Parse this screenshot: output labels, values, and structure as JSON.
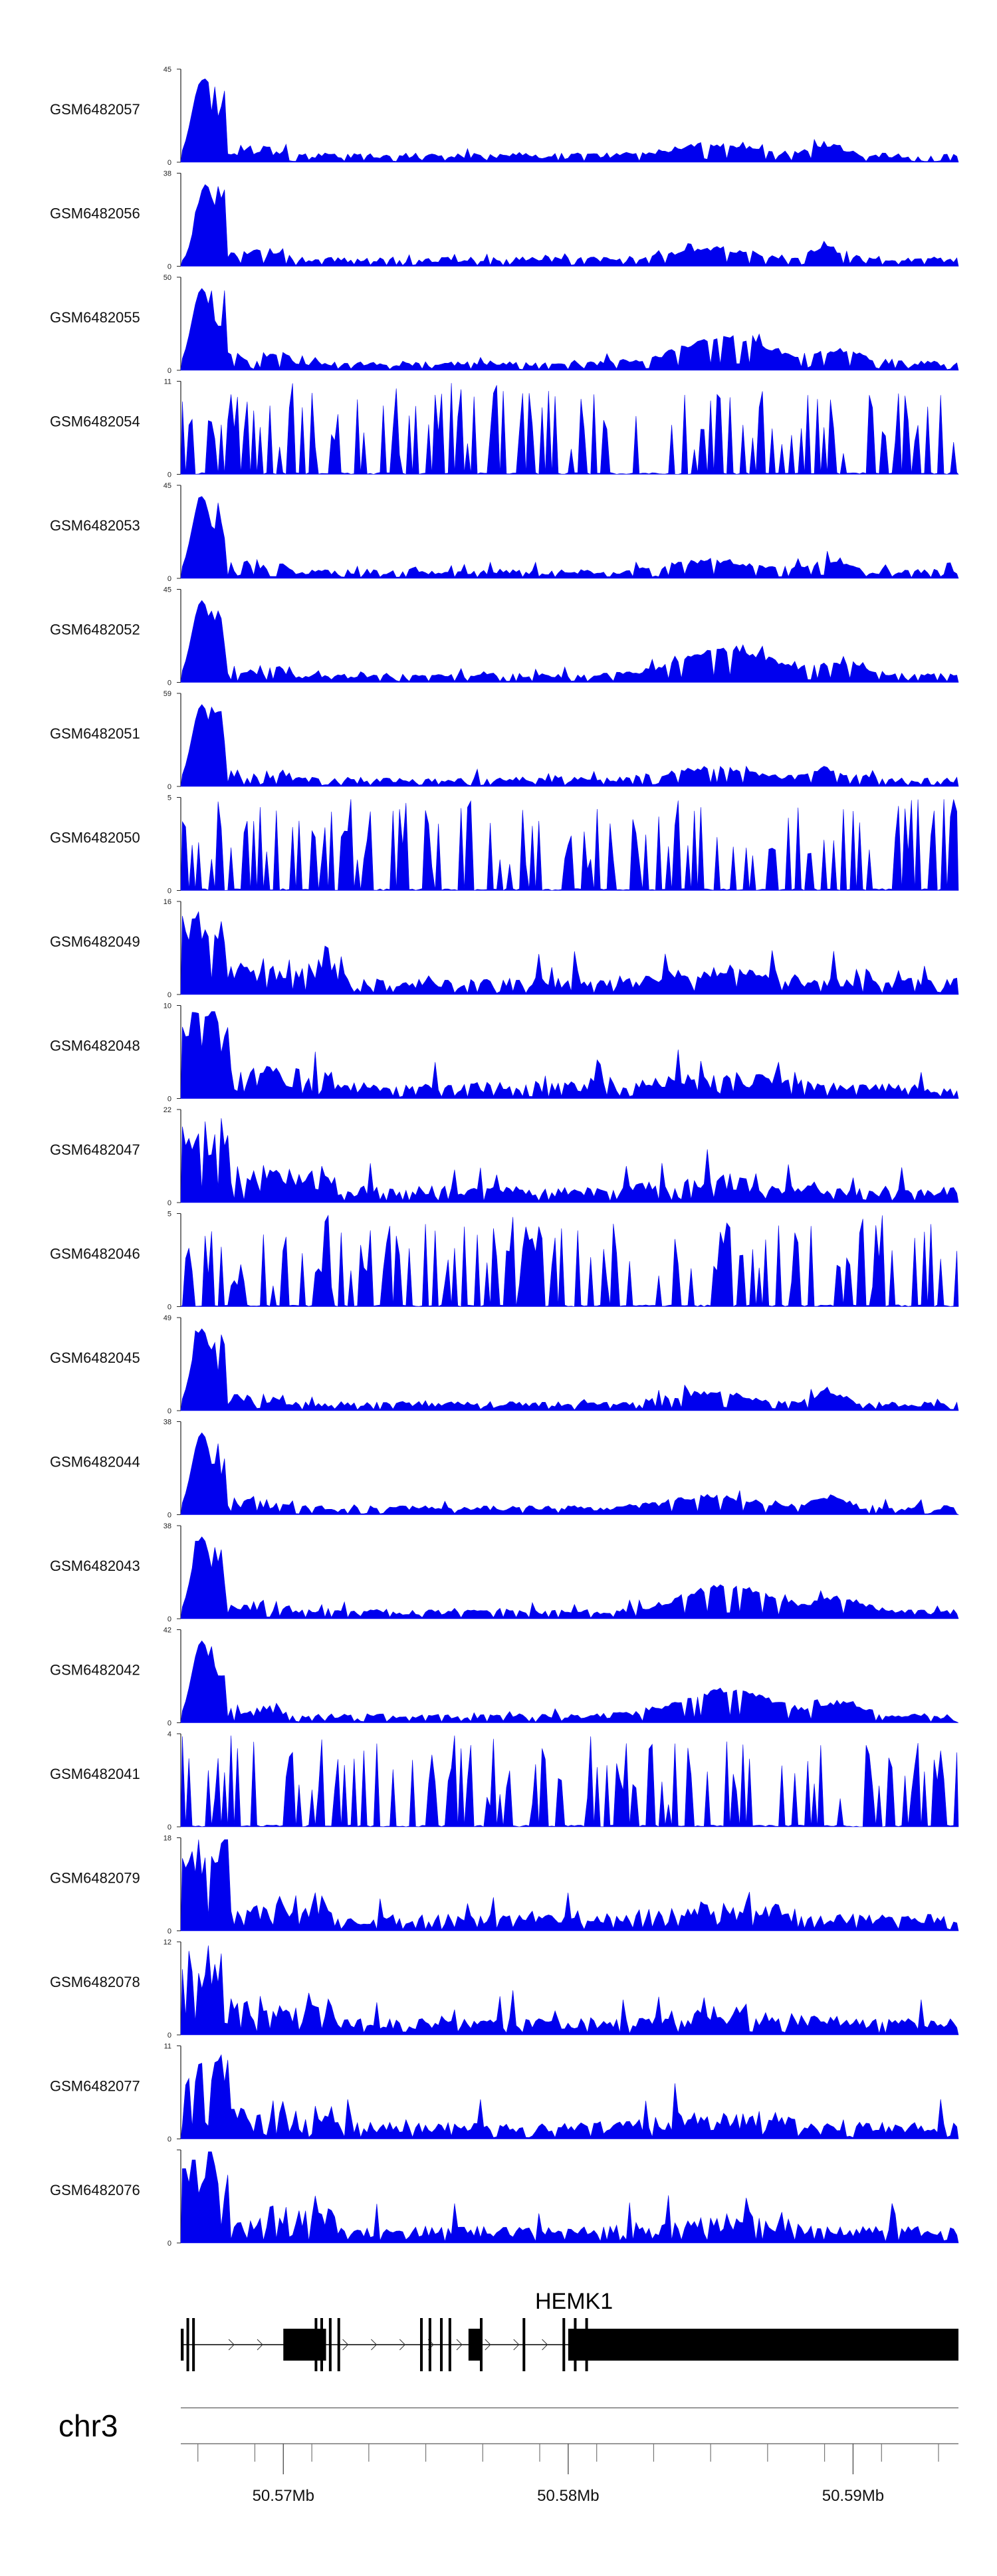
{
  "chart_data": {
    "type": "area",
    "chromosome": "chr3",
    "x_range_mb": [
      50.5664,
      50.5937
    ],
    "x_ticks_mb": [
      50.567,
      50.569,
      50.571,
      50.573,
      50.575,
      50.577,
      50.579,
      50.581,
      50.583,
      50.585,
      50.587,
      50.589,
      50.591,
      50.593
    ],
    "x_tick_labels": [
      {
        "value": 50.57,
        "label": "50.57Mb"
      },
      {
        "value": 50.58,
        "label": "50.58Mb"
      },
      {
        "value": 50.59,
        "label": "50.59Mb"
      }
    ],
    "fill_color": "#0000ee",
    "tracks": [
      {
        "name": "GSM6482057",
        "ymax": 45,
        "ymax_label": "45",
        "profile": "A",
        "seed": 11
      },
      {
        "name": "GSM6482056",
        "ymax": 38,
        "ymax_label": "38",
        "profile": "B",
        "seed": 12
      },
      {
        "name": "GSM6482055",
        "ymax": 50,
        "ymax_label": "50",
        "profile": "C",
        "seed": 13
      },
      {
        "name": "GSM6482054",
        "ymax": 11,
        "ymax_label": "11",
        "profile": "N",
        "seed": 14
      },
      {
        "name": "GSM6482053",
        "ymax": 45,
        "ymax_label": "45",
        "profile": "A",
        "seed": 15
      },
      {
        "name": "GSM6482052",
        "ymax": 45,
        "ymax_label": "45",
        "profile": "C",
        "seed": 16
      },
      {
        "name": "GSM6482051",
        "ymax": 59,
        "ymax_label": "59",
        "profile": "A",
        "seed": 17
      },
      {
        "name": "GSM6482050",
        "ymax": 5,
        "ymax_label": "5",
        "profile": "N",
        "seed": 18
      },
      {
        "name": "GSM6482049",
        "ymax": 16,
        "ymax_label": "16",
        "profile": "M",
        "seed": 19
      },
      {
        "name": "GSM6482048",
        "ymax": 10,
        "ymax_label": "10",
        "profile": "M",
        "seed": 20
      },
      {
        "name": "GSM6482047",
        "ymax": 22,
        "ymax_label": "22",
        "profile": "M",
        "seed": 21
      },
      {
        "name": "GSM6482046",
        "ymax": 5,
        "ymax_label": "5",
        "profile": "N",
        "seed": 22
      },
      {
        "name": "GSM6482045",
        "ymax": 49,
        "ymax_label": "49",
        "profile": "A",
        "seed": 23
      },
      {
        "name": "GSM6482044",
        "ymax": 38,
        "ymax_label": "38",
        "profile": "A",
        "seed": 24
      },
      {
        "name": "GSM6482043",
        "ymax": 38,
        "ymax_label": "38",
        "profile": "C",
        "seed": 25
      },
      {
        "name": "GSM6482042",
        "ymax": 42,
        "ymax_label": "42",
        "profile": "C",
        "seed": 26
      },
      {
        "name": "GSM6482041",
        "ymax": 4,
        "ymax_label": "4",
        "profile": "N",
        "seed": 27
      },
      {
        "name": "GSM6482079",
        "ymax": 18,
        "ymax_label": "18",
        "profile": "M",
        "seed": 28
      },
      {
        "name": "GSM6482078",
        "ymax": 12,
        "ymax_label": "12",
        "profile": "M",
        "seed": 29
      },
      {
        "name": "GSM6482077",
        "ymax": 11,
        "ymax_label": "11",
        "profile": "M",
        "seed": 30
      },
      {
        "name": "GSM6482076",
        "ymax": 8,
        "ymax_label": "",
        "profile": "M",
        "seed": 31
      }
    ],
    "gene": {
      "name": "HEMK1",
      "start_mb": 50.5664,
      "end_mb": 50.5937,
      "utr_exons_mb": [
        [
          50.5664,
          50.5665
        ],
        [
          50.57,
          50.5715
        ],
        [
          50.5765,
          50.5769
        ],
        [
          50.58,
          50.5937
        ]
      ],
      "exon_lines_mb": [
        50.5666,
        50.5668,
        50.5711,
        50.5713,
        50.5716,
        50.5719,
        50.5748,
        50.5751,
        50.5755,
        50.5758,
        50.5769,
        50.5784,
        50.5798,
        50.5802,
        50.5806
      ]
    }
  }
}
